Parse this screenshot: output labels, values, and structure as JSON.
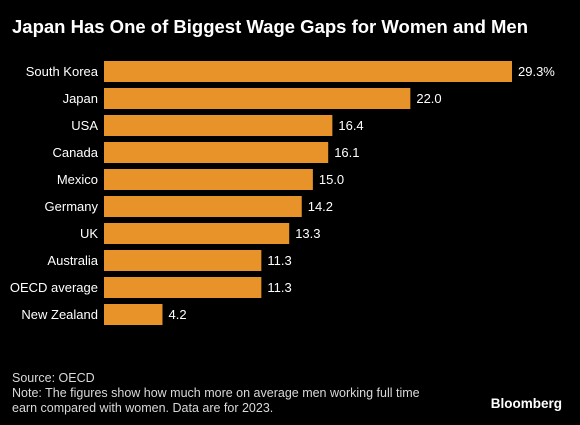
{
  "header": {
    "title": "Japan Has One of Biggest Wage Gaps for Women and Men"
  },
  "chart_data": {
    "type": "bar",
    "orientation": "horizontal",
    "title": "Japan Has One of Biggest Wage Gaps for Women and Men",
    "categories": [
      "South Korea",
      "Japan",
      "USA",
      "Canada",
      "Mexico",
      "Germany",
      "UK",
      "Australia",
      "OECD average",
      "New Zealand"
    ],
    "values": [
      29.3,
      22.0,
      16.4,
      16.1,
      15.0,
      14.2,
      13.3,
      11.3,
      11.3,
      4.2
    ],
    "value_labels": [
      "29.3%",
      "22.0",
      "16.4",
      "16.1",
      "15.0",
      "14.2",
      "13.3",
      "11.3",
      "11.3",
      "4.2"
    ],
    "xlim": [
      0,
      29.3
    ],
    "grid": false,
    "bar_color": "#e8922a",
    "label_color": "#ffffff"
  },
  "footer": {
    "source": "Source: OECD",
    "note_line1": "Note: The figures show how much more on average men working full time",
    "note_line2": "earn compared with women. Data are for 2023."
  },
  "brand": "Bloomberg",
  "colors": {
    "background": "#000000",
    "bar": "#e8922a",
    "text": "#ffffff",
    "footer_text": "#d9d9d9"
  }
}
